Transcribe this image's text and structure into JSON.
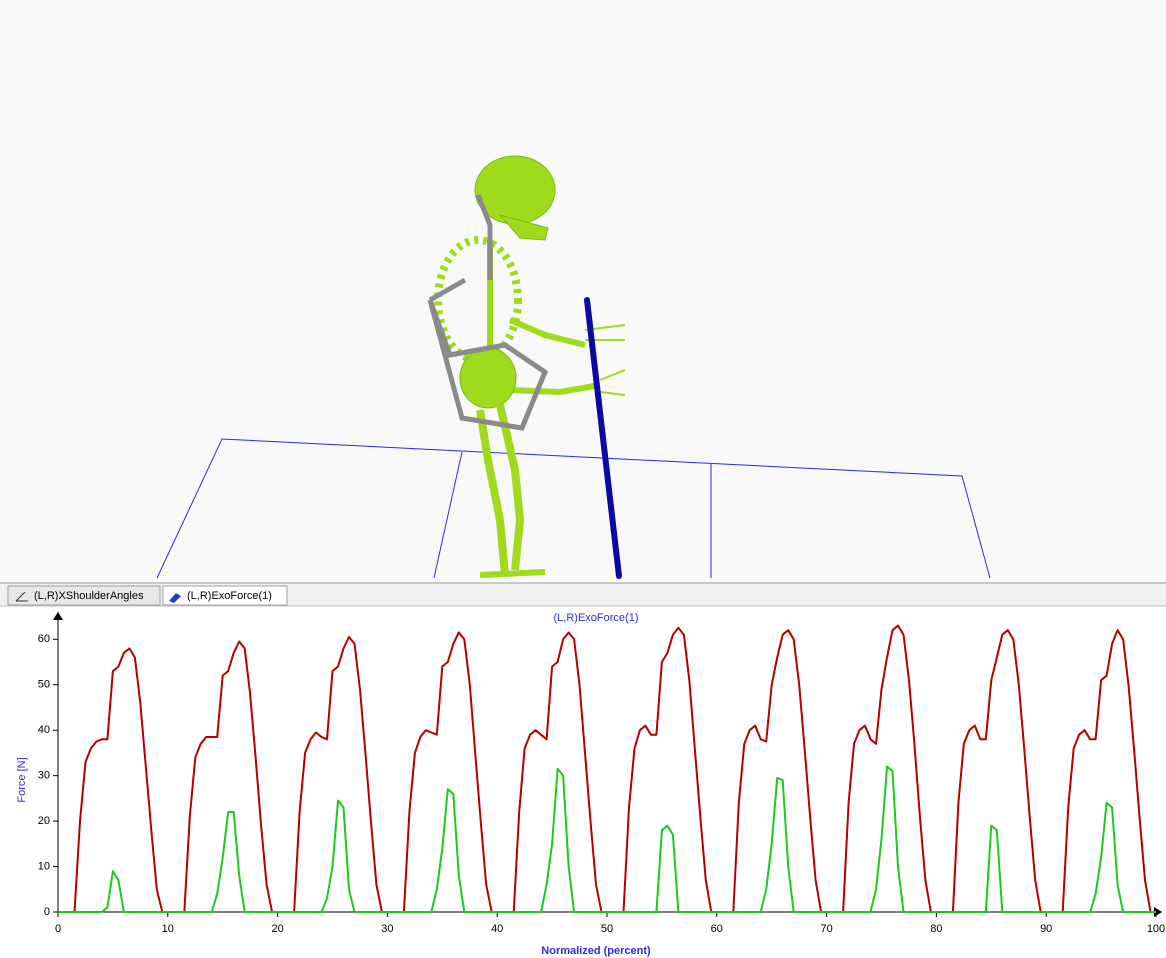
{
  "tabs": [
    "(L,R)XShoulderAngles",
    "(L,R)ExoForce(1)"
  ],
  "chart_data": {
    "type": "line",
    "title": "(L,R)ExoForce(1)",
    "x_label": "Normalized (percent)",
    "y_label": "Force [N]",
    "xlim": [
      0,
      100
    ],
    "ylim": [
      0,
      66
    ],
    "xticks": [
      0,
      10,
      20,
      30,
      40,
      50,
      60,
      70,
      80,
      90,
      100
    ],
    "yticks": [
      0,
      10,
      20,
      30,
      40,
      50,
      60
    ],
    "x": [
      0,
      0.5,
      1,
      1.5,
      2,
      2.5,
      3,
      3.5,
      4,
      4.5,
      5,
      5.5,
      6,
      6.5,
      7,
      7.5,
      8,
      8.5,
      9,
      9.5,
      10,
      10.5,
      11,
      11.5,
      12,
      12.5,
      13,
      13.5,
      14,
      14.5,
      15,
      15.5,
      16,
      16.5,
      17,
      17.5,
      18,
      18.5,
      19,
      19.5,
      20,
      20.5,
      21,
      21.5,
      22,
      22.5,
      23,
      23.5,
      24,
      24.5,
      25,
      25.5,
      26,
      26.5,
      27,
      27.5,
      28,
      28.5,
      29,
      29.5,
      30,
      30.5,
      31,
      31.5,
      32,
      32.5,
      33,
      33.5,
      34,
      34.5,
      35,
      35.5,
      36,
      36.5,
      37,
      37.5,
      38,
      38.5,
      39,
      39.5,
      40,
      40.5,
      41,
      41.5,
      42,
      42.5,
      43,
      43.5,
      44,
      44.5,
      45,
      45.5,
      46,
      46.5,
      47,
      47.5,
      48,
      48.5,
      49,
      49.5,
      50,
      50.5,
      51,
      51.5,
      52,
      52.5,
      53,
      53.5,
      54,
      54.5,
      55,
      55.5,
      56,
      56.5,
      57,
      57.5,
      58,
      58.5,
      59,
      59.5,
      60,
      60.5,
      61,
      61.5,
      62,
      62.5,
      63,
      63.5,
      64,
      64.5,
      65,
      65.5,
      66,
      66.5,
      67,
      67.5,
      68,
      68.5,
      69,
      69.5,
      70,
      70.5,
      71,
      71.5,
      72,
      72.5,
      73,
      73.5,
      74,
      74.5,
      75,
      75.5,
      76,
      76.5,
      77,
      77.5,
      78,
      78.5,
      79,
      79.5,
      80,
      80.5,
      81,
      81.5,
      82,
      82.5,
      83,
      83.5,
      84,
      84.5,
      85,
      85.5,
      86,
      86.5,
      87,
      87.5,
      88,
      88.5,
      89,
      89.5,
      90,
      90.5,
      91,
      91.5,
      92,
      92.5,
      93,
      93.5,
      94,
      94.5,
      95,
      95.5,
      96,
      96.5,
      97,
      97.5,
      98,
      98.5,
      99,
      99.5,
      100
    ],
    "series": [
      {
        "color": "#b40000",
        "values": [
          0,
          0,
          0,
          0,
          20,
          33,
          36,
          37.5,
          38,
          38,
          53,
          54,
          57,
          58,
          56,
          46,
          32,
          18,
          5,
          0,
          0,
          0,
          0,
          0,
          21,
          34,
          37,
          38.5,
          38.5,
          38.5,
          52,
          53,
          57,
          59.5,
          58,
          48,
          34,
          19,
          6,
          0,
          0,
          0,
          0,
          0,
          22,
          35,
          38,
          39.5,
          38.5,
          38,
          53,
          54,
          58,
          60.5,
          59,
          49,
          35,
          20,
          6,
          0,
          0,
          0,
          0,
          0,
          22,
          35,
          38.5,
          40,
          39.5,
          39,
          54,
          55,
          59,
          61.5,
          60,
          50,
          35,
          20,
          6,
          0,
          0,
          0,
          0,
          0,
          22,
          36,
          39,
          40,
          39,
          38,
          54,
          55,
          60,
          61.5,
          60,
          50,
          35,
          20,
          6,
          0,
          0,
          0,
          0,
          0,
          23,
          36,
          40,
          41,
          39,
          39,
          55,
          57,
          61,
          62.5,
          61,
          51,
          36,
          21,
          7,
          0,
          0,
          0,
          0,
          0,
          24,
          37,
          40,
          41,
          38,
          37.5,
          50,
          56,
          61,
          62,
          60,
          50,
          36,
          21,
          7,
          0,
          0,
          0,
          0,
          0,
          24,
          37,
          40,
          41,
          38,
          37,
          49,
          56,
          62,
          63,
          61,
          51,
          37,
          21,
          7,
          0,
          0,
          0,
          0,
          0,
          24,
          37,
          40,
          41,
          38,
          38,
          51,
          56,
          61,
          62,
          60,
          50,
          36,
          21,
          7,
          0,
          0,
          0,
          0,
          0,
          23,
          36,
          39,
          40,
          38,
          38,
          51,
          52,
          59,
          62,
          60,
          50,
          36,
          21,
          7,
          0,
          0
        ]
      },
      {
        "color": "#1ec81e",
        "values": [
          0,
          0,
          0,
          0,
          0,
          0,
          0,
          0,
          0,
          1,
          9,
          7,
          0,
          0,
          0,
          0,
          0,
          0,
          0,
          0,
          0,
          0,
          0,
          0,
          0,
          0,
          0,
          0,
          0,
          4,
          12,
          22,
          22,
          8,
          0,
          0,
          0,
          0,
          0,
          0,
          0,
          0,
          0,
          0,
          0,
          0,
          0,
          0,
          0,
          3,
          10,
          24.5,
          23,
          5,
          0,
          0,
          0,
          0,
          0,
          0,
          0,
          0,
          0,
          0,
          0,
          0,
          0,
          0,
          0,
          5,
          14,
          27,
          26,
          8,
          0,
          0,
          0,
          0,
          0,
          0,
          0,
          0,
          0,
          0,
          0,
          0,
          0,
          0,
          0,
          6,
          15,
          31.5,
          30,
          10,
          0,
          0,
          0,
          0,
          0,
          0,
          0,
          0,
          0,
          0,
          0,
          0,
          0,
          0,
          0,
          0,
          18,
          19,
          17,
          0,
          0,
          0,
          0,
          0,
          0,
          0,
          0,
          0,
          0,
          0,
          0,
          0,
          0,
          0,
          0,
          5,
          15,
          29.5,
          29,
          10,
          0,
          0,
          0,
          0,
          0,
          0,
          0,
          0,
          0,
          0,
          0,
          0,
          0,
          0,
          0,
          5,
          16,
          32,
          31,
          10,
          0,
          0,
          0,
          0,
          0,
          0,
          0,
          0,
          0,
          0,
          0,
          0,
          0,
          0,
          0,
          0,
          19,
          18,
          0,
          0,
          0,
          0,
          0,
          0,
          0,
          0,
          0,
          0,
          0,
          0,
          0,
          0,
          0,
          0,
          0,
          4,
          12,
          24,
          23,
          6,
          0,
          0,
          0,
          0,
          0,
          0,
          0
        ]
      }
    ]
  }
}
